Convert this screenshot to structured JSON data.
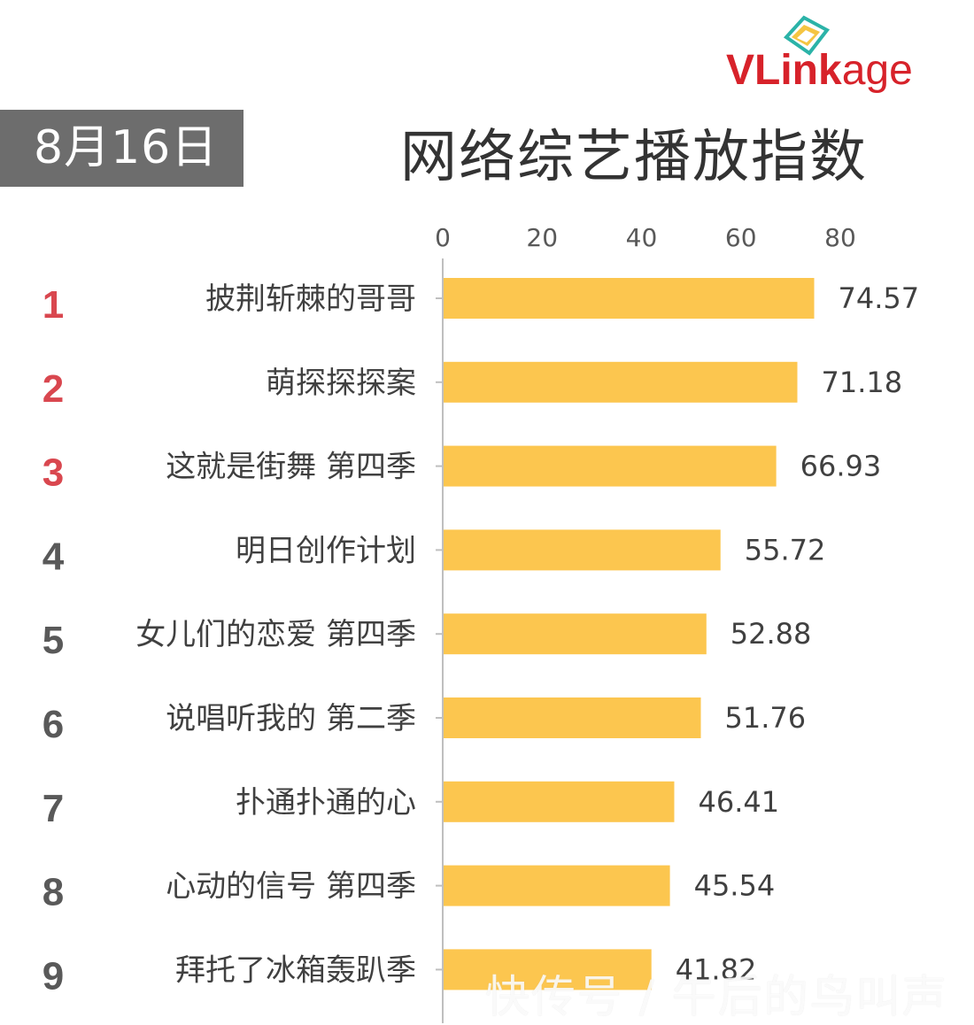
{
  "header": {
    "date": "8月16日",
    "title": "网络综艺播放指数"
  },
  "logo": {
    "text_vl": "VLink",
    "text_age": "age"
  },
  "watermark": "快传号 / 午后的鸟叫声",
  "colors": {
    "bar": "#fcc64f",
    "rank_top": "#d9474f",
    "rank_other": "#595959",
    "axis": "#bfbfbf",
    "text": "#404040",
    "badge": "#6d6d6d"
  },
  "chart_data": {
    "type": "bar",
    "orientation": "horizontal",
    "title": "网络综艺播放指数",
    "xlim": [
      0,
      80
    ],
    "xticks": [
      "0",
      "20",
      "40",
      "60",
      "80"
    ],
    "xtick_values": [
      0,
      20,
      40,
      60,
      80
    ],
    "grid": false,
    "ranks": [
      "1",
      "2",
      "3",
      "4",
      "5",
      "6",
      "7",
      "8",
      "9"
    ],
    "categories": [
      "披荆斩棘的哥哥",
      "萌探探探案",
      "这就是街舞 第四季",
      "明日创作计划",
      "女儿们的恋爱 第四季",
      "说唱听我的 第二季",
      "扑通扑通的心",
      "心动的信号 第四季",
      "拜托了冰箱轰趴季"
    ],
    "values": [
      74.57,
      71.18,
      66.93,
      55.72,
      52.88,
      51.76,
      46.41,
      45.54,
      41.82
    ],
    "value_labels": [
      "74.57",
      "71.18",
      "66.93",
      "55.72",
      "52.88",
      "51.76",
      "46.41",
      "45.54",
      "41.82"
    ]
  }
}
